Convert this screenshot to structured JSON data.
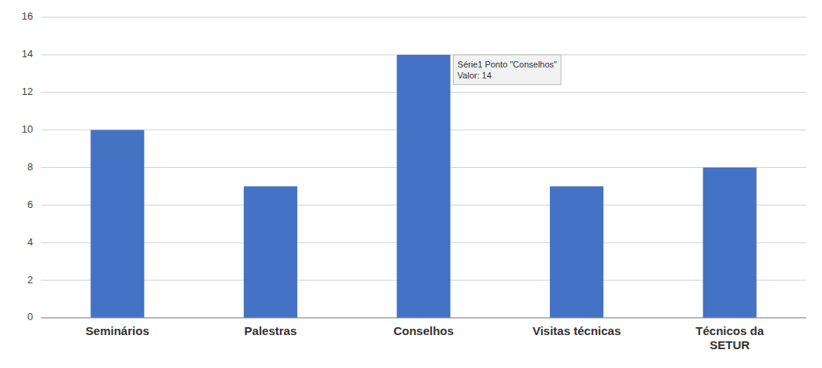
{
  "chart_data": {
    "type": "bar",
    "categories": [
      "Seminários",
      "Palestras",
      "Conselhos",
      "Visitas técnicas",
      "Técnicos da\nSETUR"
    ],
    "values": [
      10,
      7,
      14,
      7,
      8
    ],
    "color": "#4472C4",
    "ylim": [
      0,
      16
    ],
    "yticks": [
      0,
      2,
      4,
      6,
      8,
      10,
      12,
      14,
      16
    ],
    "grid": true,
    "annotations": [
      {
        "text": "Série1 Ponto \"Conselhos\"\nValor: 14",
        "x": "Conselhos"
      }
    ]
  }
}
